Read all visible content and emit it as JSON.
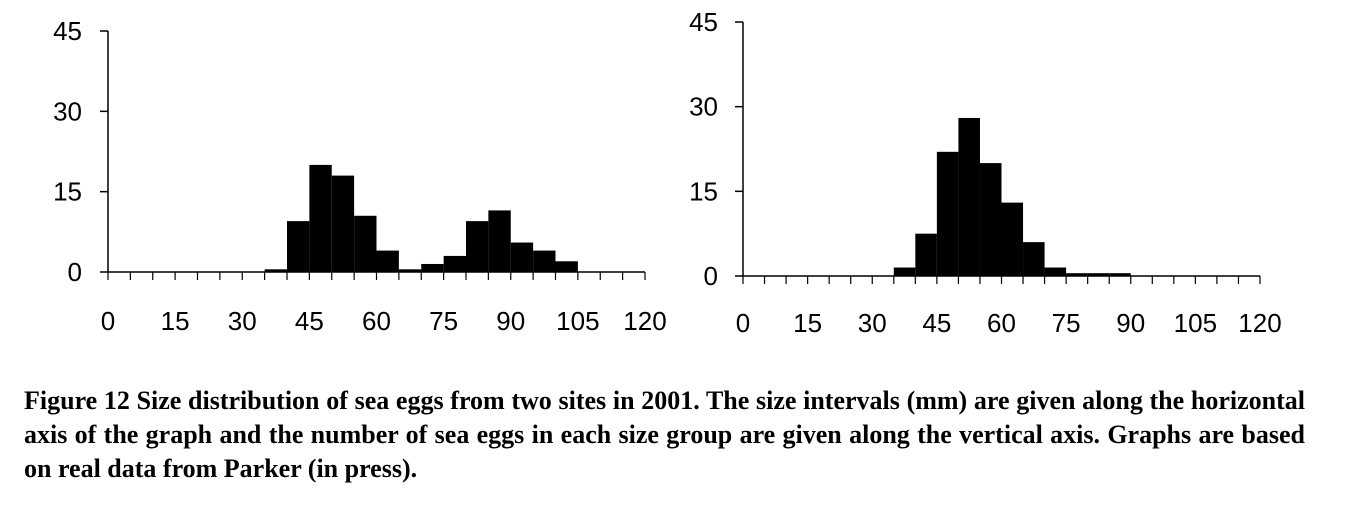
{
  "chart_data": [
    {
      "type": "bar",
      "x_ticks": [
        0,
        15,
        30,
        45,
        60,
        75,
        90,
        105,
        120
      ],
      "y_ticks": [
        0,
        15,
        30,
        45
      ],
      "xlim": [
        0,
        120
      ],
      "ylim": [
        0,
        45
      ],
      "bin_width": 5,
      "bins": [
        {
          "start": 35,
          "value": 0.5
        },
        {
          "start": 40,
          "value": 9.5
        },
        {
          "start": 45,
          "value": 20
        },
        {
          "start": 50,
          "value": 18
        },
        {
          "start": 55,
          "value": 10.5
        },
        {
          "start": 60,
          "value": 4
        },
        {
          "start": 65,
          "value": 0.5
        },
        {
          "start": 70,
          "value": 1.5
        },
        {
          "start": 75,
          "value": 3
        },
        {
          "start": 80,
          "value": 9.5
        },
        {
          "start": 85,
          "value": 11.5
        },
        {
          "start": 90,
          "value": 5.5
        },
        {
          "start": 95,
          "value": 4
        },
        {
          "start": 100,
          "value": 2
        }
      ]
    },
    {
      "type": "bar",
      "x_ticks": [
        0,
        15,
        30,
        45,
        60,
        75,
        90,
        105,
        120
      ],
      "y_ticks": [
        0,
        15,
        30,
        45
      ],
      "xlim": [
        0,
        120
      ],
      "ylim": [
        0,
        45
      ],
      "bin_width": 5,
      "bins": [
        {
          "start": 35,
          "value": 1.5
        },
        {
          "start": 40,
          "value": 7.5
        },
        {
          "start": 45,
          "value": 22
        },
        {
          "start": 50,
          "value": 28
        },
        {
          "start": 55,
          "value": 20
        },
        {
          "start": 60,
          "value": 13
        },
        {
          "start": 65,
          "value": 6
        },
        {
          "start": 70,
          "value": 1.5
        },
        {
          "start": 75,
          "value": 0.5
        },
        {
          "start": 80,
          "value": 0.5
        },
        {
          "start": 85,
          "value": 0.5
        }
      ]
    }
  ],
  "caption": "Figure 12 Size distribution of sea eggs from two sites in 2001. The size intervals (mm) are given along the horizontal axis of the graph and the number of sea eggs in each size group are given along the vertical axis. Graphs are based on real data from Parker (in press)."
}
